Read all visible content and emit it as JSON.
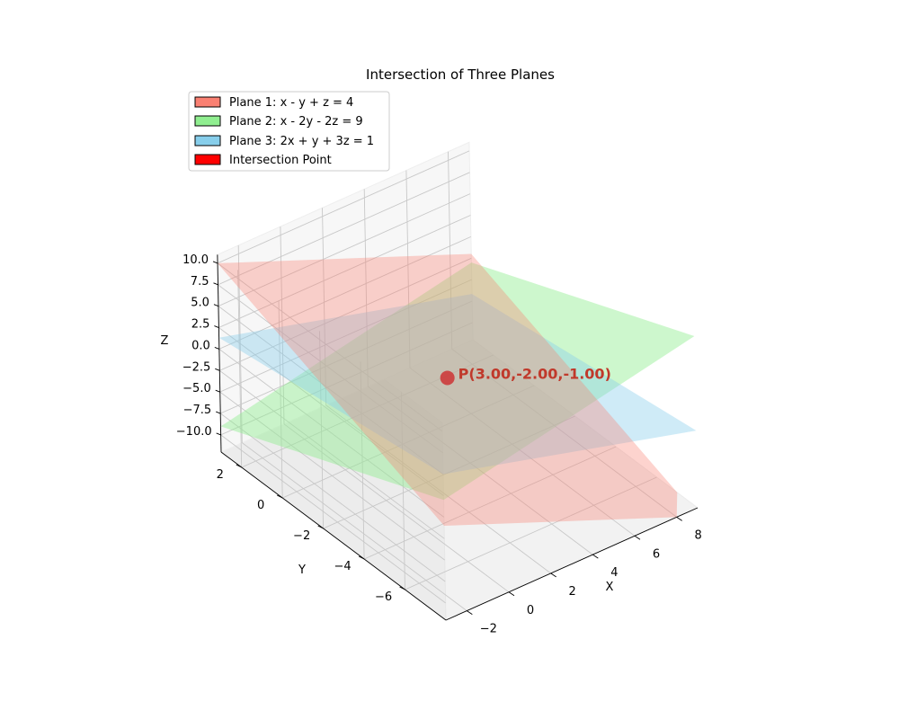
{
  "chart_data": {
    "type": "3d-surface",
    "title": "Intersection of Three Planes",
    "xlabel": "X",
    "ylabel": "Y",
    "zlabel": "Z",
    "xlim": [
      -3,
      9
    ],
    "ylim": [
      -8,
      3
    ],
    "zlim": [
      -12,
      11
    ],
    "xticks": [
      -2,
      0,
      2,
      4,
      6,
      8
    ],
    "yticks": [
      -6,
      -4,
      -2,
      0,
      2
    ],
    "zticks": [
      10.0,
      7.5,
      5.0,
      2.5,
      0.0,
      -2.5,
      -5.0,
      -7.5,
      -10.0
    ],
    "xtick_labels": [
      "−2",
      "0",
      "2",
      "4",
      "6",
      "8"
    ],
    "ytick_labels": [
      "−6",
      "−4",
      "−2",
      "0",
      "2"
    ],
    "ztick_labels": [
      "10.0",
      "7.5",
      "5.0",
      "2.5",
      "0.0",
      "−2.5",
      "−5.0",
      "−7.5",
      "−10.0"
    ],
    "grid": true,
    "legend_position": "top-left",
    "planes": [
      {
        "name": "Plane 1: x - y + z = 4",
        "a": 1,
        "b": -1,
        "c": 1,
        "d": 4,
        "color": "#fa8072",
        "opacity": 0.35
      },
      {
        "name": "Plane 2: x - 2y - 2z = 9",
        "a": 1,
        "b": -2,
        "c": -2,
        "d": 9,
        "color": "#90ee90",
        "opacity": 0.45
      },
      {
        "name": "Plane 3: 2x + y + 3z = 1",
        "a": 2,
        "b": 1,
        "c": 3,
        "d": 1,
        "color": "#87ceeb",
        "opacity": 0.4
      }
    ],
    "intersection_point": {
      "name": "Intersection Point",
      "x": 3.0,
      "y": -2.0,
      "z": -1.0,
      "label": "P(3.00,-2.00,-1.00)",
      "color": "#ff0000"
    },
    "legend": [
      {
        "label": "Plane 1: x - y + z = 4",
        "color": "#fa8072"
      },
      {
        "label": "Plane 2: x - 2y - 2z = 9",
        "color": "#90ee90"
      },
      {
        "label": "Plane 3: 2x + y + 3z = 1",
        "color": "#87ceeb"
      },
      {
        "label": "Intersection Point",
        "color": "#ff0000"
      }
    ]
  }
}
